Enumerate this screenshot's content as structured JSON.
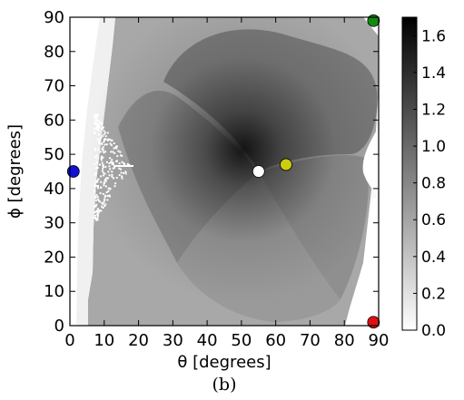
{
  "chart_data": {
    "type": "heatmap",
    "title": "",
    "xlabel": "θ [degrees]",
    "ylabel": "ϕ [degrees]",
    "xlim": [
      0,
      90
    ],
    "ylim": [
      0,
      90
    ],
    "xticks": [
      0,
      10,
      20,
      30,
      40,
      50,
      60,
      70,
      80,
      90
    ],
    "yticks": [
      0,
      10,
      20,
      30,
      40,
      50,
      60,
      70,
      80,
      90
    ],
    "grid": false,
    "colormap": "gray_r",
    "colorbar": {
      "min": 0.0,
      "max": 1.7,
      "ticks": [
        0.0,
        0.2,
        0.4,
        0.6,
        0.8,
        1.0,
        1.2,
        1.4,
        1.6
      ],
      "tick_labels": [
        "0.0",
        "0.2",
        "0.4",
        "0.6",
        "0.8",
        "1.0",
        "1.2",
        "1.4",
        "1.6"
      ]
    },
    "markers": [
      {
        "color": "#1010d8",
        "x": 1,
        "y": 45
      },
      {
        "color": "#118811",
        "x": 88.5,
        "y": 89
      },
      {
        "color": "#e01010",
        "x": 88.5,
        "y": 1
      },
      {
        "color": "#cccc10",
        "x": 63,
        "y": 47
      },
      {
        "color": "#ffffff",
        "x": 55,
        "y": 45
      }
    ],
    "caption": "(b)"
  }
}
